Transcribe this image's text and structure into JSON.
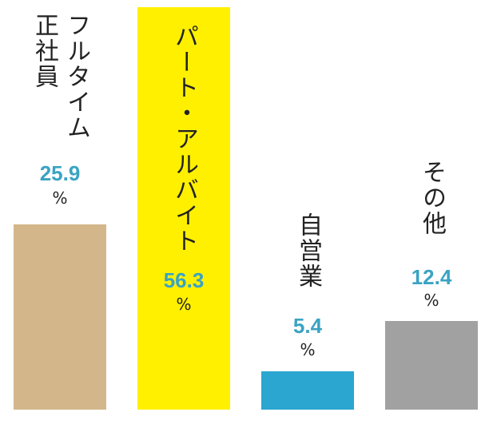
{
  "chart_data": {
    "type": "bar",
    "title": "",
    "xlabel": "",
    "ylabel": "",
    "unit": "%",
    "ylim": [
      0,
      56.3
    ],
    "grid": false,
    "categories": [
      "フルタイム正社員",
      "パート・アルバイト",
      "自営業",
      "その他"
    ],
    "category_lines": [
      [
        "フルタイム",
        "正社員"
      ],
      [
        "パート・アルバイト"
      ],
      [
        "自営業"
      ],
      [
        "その他"
      ]
    ],
    "values": [
      25.9,
      56.3,
      5.4,
      12.4
    ],
    "value_labels": [
      "25.9",
      "56.3",
      "5.4",
      "12.4"
    ],
    "colors": [
      "#d3b68a",
      "#fff000",
      "#2aa6d1",
      "#a1a1a1"
    ]
  }
}
